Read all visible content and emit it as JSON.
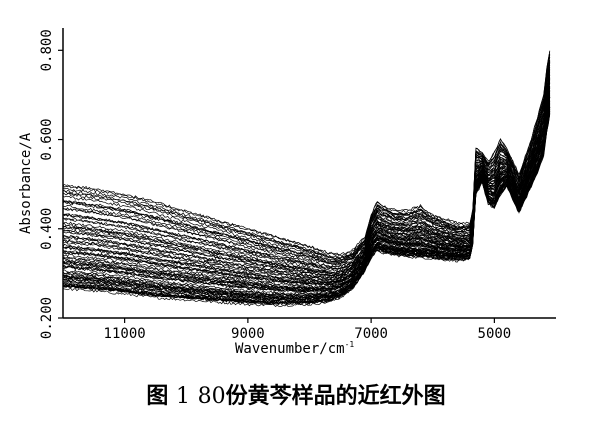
{
  "chart_data": {
    "type": "line",
    "xlabel": "Wavenumber/cm",
    "xlabel_sup": "-1",
    "ylabel": "Absorbance/A",
    "xlim": [
      12000,
      4000
    ],
    "ylim": [
      0.2,
      0.85
    ],
    "x_ticks": [
      11000,
      9000,
      7000,
      5000
    ],
    "x_tick_labels": [
      "11000",
      "9000",
      "7000",
      "5000"
    ],
    "y_ticks": [
      0.2,
      0.4,
      0.6,
      0.8
    ],
    "y_tick_labels": [
      "0.200",
      "0.400",
      "0.600",
      "0.800"
    ],
    "series_count": 80,
    "color": "#000000",
    "base_x": [
      12000,
      11500,
      11000,
      10500,
      10000,
      9500,
      9000,
      8500,
      8000,
      7700,
      7500,
      7300,
      7100,
      7000,
      6900,
      6800,
      6600,
      6400,
      6200,
      6000,
      5800,
      5600,
      5400,
      5350,
      5300,
      5200,
      5100,
      5000,
      4900,
      4800,
      4700,
      4600,
      4500,
      4400,
      4300,
      4200,
      4150,
      4100
    ],
    "lower_envelope": [
      0.27,
      0.265,
      0.258,
      0.25,
      0.245,
      0.24,
      0.235,
      0.233,
      0.235,
      0.24,
      0.25,
      0.27,
      0.31,
      0.34,
      0.355,
      0.35,
      0.345,
      0.342,
      0.34,
      0.338,
      0.335,
      0.333,
      0.335,
      0.37,
      0.48,
      0.51,
      0.46,
      0.45,
      0.48,
      0.5,
      0.47,
      0.44,
      0.47,
      0.5,
      0.53,
      0.57,
      0.62,
      0.66
    ],
    "upper_envelope": [
      0.5,
      0.49,
      0.478,
      0.46,
      0.44,
      0.42,
      0.4,
      0.38,
      0.36,
      0.345,
      0.34,
      0.35,
      0.38,
      0.43,
      0.46,
      0.45,
      0.44,
      0.44,
      0.45,
      0.43,
      0.42,
      0.41,
      0.41,
      0.44,
      0.58,
      0.57,
      0.55,
      0.57,
      0.6,
      0.58,
      0.55,
      0.52,
      0.56,
      0.6,
      0.65,
      0.7,
      0.76,
      0.8
    ]
  },
  "caption": {
    "prefix": "图",
    "number": "1",
    "count": "80",
    "text": "份黄芩样品的近红外图"
  }
}
